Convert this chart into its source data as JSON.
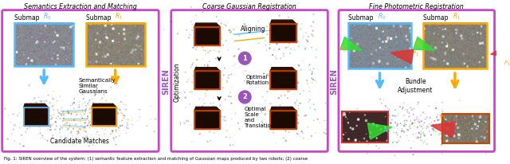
{
  "bg_color": "#ffffff",
  "border_color": "#cc44cc",
  "border_lw": 2.0,
  "arrow_blue": "#55bbff",
  "arrow_orange": "#ffaa00",
  "arrow_purple": "#9955bb",
  "section1_title": "Semantics Extraction and Matching",
  "section2_title": "Coarse Gaussian Registration",
  "section3_title": "Fine Photometric Registration",
  "caption": "Fig. 1: SIREN overview of the system: (1) semantic feature extraction and matching of Gaussian maps produced by two robots; (2) coarse",
  "siren_label": "SIREN",
  "optimization_label": "Optimization",
  "aligning": "Aligning...",
  "opt_rotation": "Optimal\nRotation",
  "opt_scale": "Optimal\nScale\nand\nTranslation",
  "bundle_adj": "Bundle\nAdjustment",
  "cand_matches": "Candidate Matches",
  "sem_similar": "Semantically\nSimilar\nGaussians"
}
